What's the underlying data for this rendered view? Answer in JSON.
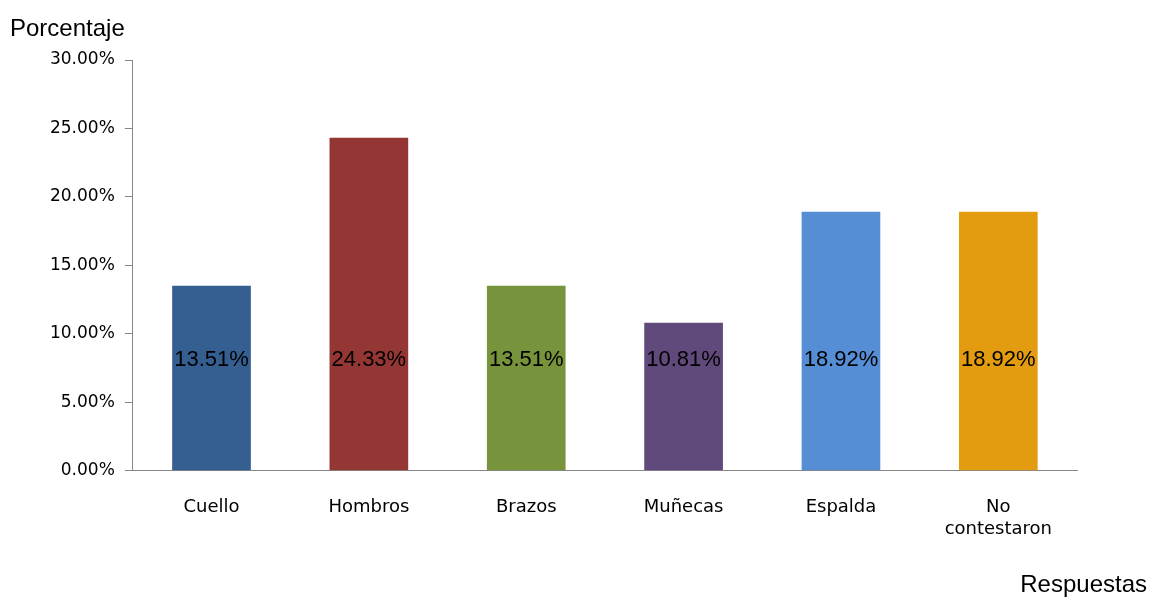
{
  "chart_data": {
    "type": "bar",
    "xlabel": "Respuestas",
    "ylabel": "Porcentaje",
    "categories": [
      "Cuello",
      "Hombros",
      "Brazos",
      "Muñecas",
      "Espalda",
      "No contestaron"
    ],
    "values": [
      13.51,
      24.33,
      13.51,
      10.81,
      18.92,
      18.92
    ],
    "colors": [
      "#355f91",
      "#943634",
      "#77933c",
      "#604a7b",
      "#558ed5",
      "#e39b0f"
    ],
    "value_labels": [
      "13.51%",
      "24.33%",
      "13.51%",
      "10.81%",
      "18.92%",
      "18.92%"
    ],
    "ylim": [
      0,
      30
    ],
    "yticks": [
      {
        "value": 0,
        "label": "0.00%"
      },
      {
        "value": 5,
        "label": "5.00%"
      },
      {
        "value": 10,
        "label": "10.00%"
      },
      {
        "value": 15,
        "label": "15.00%"
      },
      {
        "value": 20,
        "label": "20.00%"
      },
      {
        "value": 25,
        "label": "25.00%"
      },
      {
        "value": 30,
        "label": "30.00%"
      }
    ],
    "grid": false,
    "legend": false
  }
}
